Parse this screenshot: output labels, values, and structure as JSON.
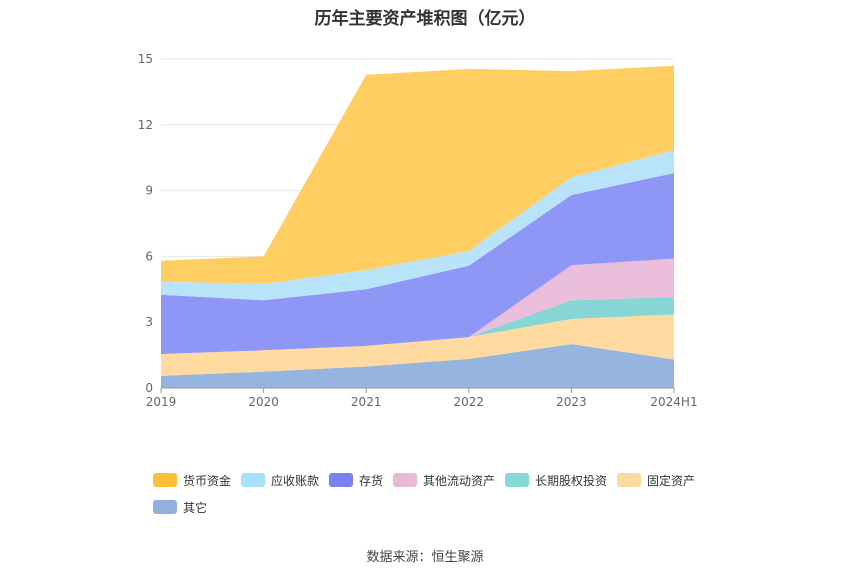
{
  "chart_data": {
    "type": "area",
    "stacked": true,
    "title": "历年主要资产堆积图（亿元）",
    "categories": [
      "2019",
      "2020",
      "2021",
      "2022",
      "2023",
      "2024H1"
    ],
    "ylim": [
      0,
      15
    ],
    "yticks": [
      0,
      3,
      6,
      9,
      12,
      15
    ],
    "grid": true,
    "legend_position": "bottom",
    "series": [
      {
        "name": "其它",
        "color": "#8fb0dc",
        "values": [
          0.55,
          0.75,
          0.98,
          1.32,
          2.0,
          1.3
        ]
      },
      {
        "name": "固定资产",
        "color": "#ffd89c",
        "values": [
          1.0,
          0.97,
          0.94,
          1.0,
          1.15,
          2.05
        ]
      },
      {
        "name": "长期股权投资",
        "color": "#80d4d4",
        "values": [
          0.0,
          0.0,
          0.0,
          0.0,
          0.85,
          0.8
        ]
      },
      {
        "name": "其他流动资产",
        "color": "#eabada",
        "values": [
          0.0,
          0.0,
          0.0,
          0.0,
          1.6,
          1.75
        ]
      },
      {
        "name": "存货",
        "color": "#8891f5",
        "values": [
          2.7,
          2.28,
          2.58,
          3.25,
          3.2,
          3.9
        ]
      },
      {
        "name": "应收账款",
        "color": "#b5e2f8",
        "values": [
          0.6,
          0.75,
          0.88,
          0.68,
          0.8,
          1.05
        ]
      },
      {
        "name": "货币资金",
        "color": "#fecb5b",
        "values": [
          0.95,
          1.25,
          8.9,
          8.3,
          4.85,
          3.85
        ]
      }
    ],
    "legend_order": [
      "货币资金",
      "应收账款",
      "存货",
      "其他流动资产",
      "长期股权投资",
      "固定资产",
      "其它"
    ],
    "legend_colors": {
      "货币资金": "#fbbf38",
      "应收账款": "#a8e0fa",
      "存货": "#7b7ff0",
      "其他流动资产": "#eab8d8",
      "长期股权投资": "#86d8d6",
      "固定资产": "#fcd9a0",
      "其它": "#92b1dd"
    }
  },
  "source": "数据来源：恒生聚源"
}
